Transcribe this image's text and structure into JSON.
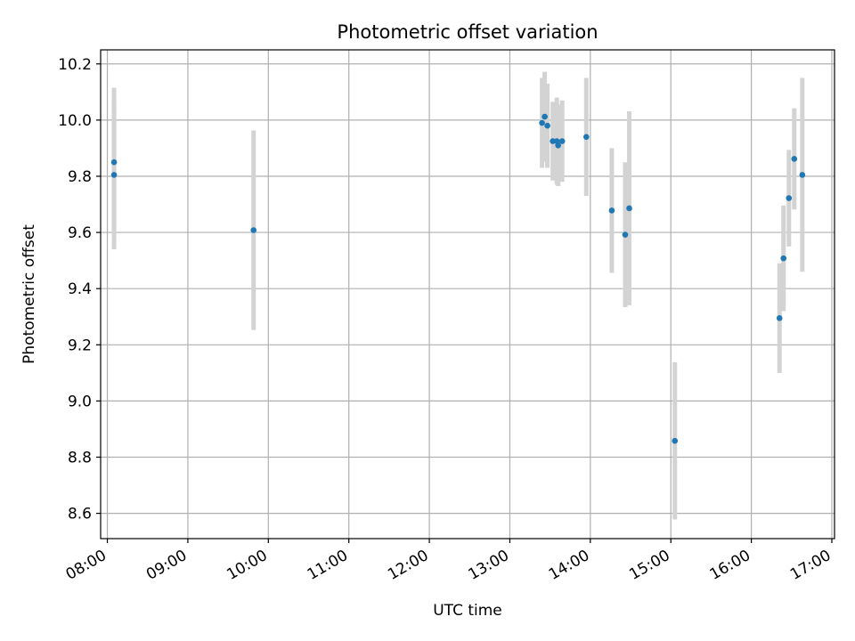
{
  "chart_data": {
    "type": "scatter",
    "title": "Photometric offset variation",
    "xlabel": "UTC time",
    "ylabel": "Photometric offset",
    "x_tick_labels": [
      "08:00",
      "09:00",
      "10:00",
      "11:00",
      "12:00",
      "13:00",
      "14:00",
      "15:00",
      "16:00",
      "17:00"
    ],
    "y_tick_labels": [
      "8.6",
      "8.8",
      "9.0",
      "9.2",
      "9.4",
      "9.6",
      "9.8",
      "10.0",
      "10.2"
    ],
    "xlim": [
      "07:55",
      "17:02"
    ],
    "ylim": [
      8.51,
      10.25
    ],
    "grid": true,
    "marker_color": "#1f77b4",
    "errorbar_color": "#d3d3d3",
    "points": [
      {
        "x": "08:05",
        "y": 9.85,
        "err": 0.265
      },
      {
        "x": "08:05",
        "y": 9.805,
        "err": 0.265
      },
      {
        "x": "09:49",
        "y": 9.608,
        "err": 0.355
      },
      {
        "x": "13:24",
        "y": 9.99,
        "err": 0.16
      },
      {
        "x": "13:26",
        "y": 10.012,
        "err": 0.16
      },
      {
        "x": "13:28",
        "y": 9.98,
        "err": 0.15
      },
      {
        "x": "13:32",
        "y": 9.925,
        "err": 0.14
      },
      {
        "x": "13:35",
        "y": 9.925,
        "err": 0.155
      },
      {
        "x": "13:36",
        "y": 9.91,
        "err": 0.145
      },
      {
        "x": "13:39",
        "y": 9.925,
        "err": 0.145
      },
      {
        "x": "13:57",
        "y": 9.94,
        "err": 0.21
      },
      {
        "x": "14:16",
        "y": 9.678,
        "err": 0.222
      },
      {
        "x": "14:26",
        "y": 9.592,
        "err": 0.258
      },
      {
        "x": "14:29",
        "y": 9.686,
        "err": 0.345
      },
      {
        "x": "15:03",
        "y": 8.858,
        "err": 0.28
      },
      {
        "x": "16:21",
        "y": 9.295,
        "err": 0.195
      },
      {
        "x": "16:24",
        "y": 9.508,
        "err": 0.188
      },
      {
        "x": "16:28",
        "y": 9.722,
        "err": 0.172
      },
      {
        "x": "16:32",
        "y": 9.862,
        "err": 0.18
      },
      {
        "x": "16:38",
        "y": 9.805,
        "err": 0.345
      }
    ]
  }
}
